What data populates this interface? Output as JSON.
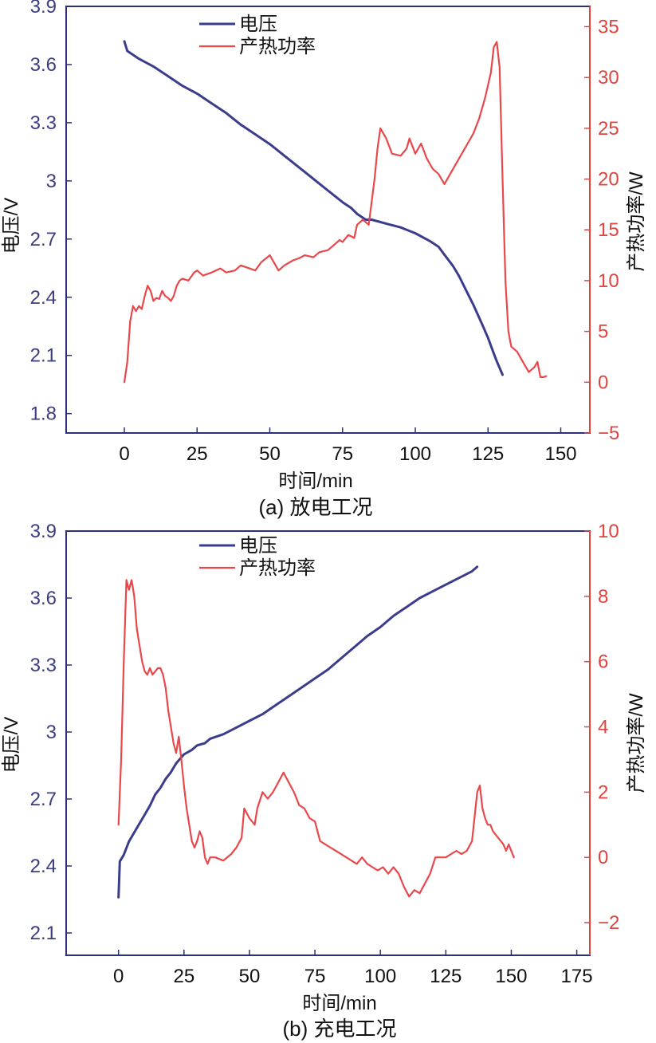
{
  "chart_data": [
    {
      "type": "line",
      "caption": "(a) 放电工况",
      "xlabel": "时间/min",
      "ylabel_left": "电压/V",
      "ylabel_right": "产热功率/W",
      "xlim": [
        -20,
        160
      ],
      "xticks": [
        0,
        25,
        50,
        75,
        100,
        125,
        150
      ],
      "ylim_left": [
        1.7,
        3.9
      ],
      "yticks_left": [
        1.8,
        2.1,
        2.4,
        2.7,
        3.0,
        3.3,
        3.6,
        3.9
      ],
      "ylim_right": [
        -5,
        37
      ],
      "yticks_right": [
        -5,
        0,
        5,
        10,
        15,
        20,
        25,
        30,
        35
      ],
      "legend_position": "top-center",
      "series": [
        {
          "name": "电压",
          "axis": "left",
          "color": "#3b3d8c",
          "x": [
            0,
            1,
            5,
            10,
            15,
            20,
            25,
            30,
            35,
            40,
            45,
            50,
            55,
            60,
            65,
            70,
            75,
            78,
            80,
            83,
            85,
            90,
            95,
            100,
            105,
            108,
            110,
            113,
            115,
            118,
            120,
            123,
            125,
            127,
            128,
            130
          ],
          "y": [
            3.72,
            3.67,
            3.63,
            3.59,
            3.54,
            3.49,
            3.45,
            3.4,
            3.35,
            3.29,
            3.24,
            3.19,
            3.13,
            3.07,
            3.01,
            2.95,
            2.89,
            2.86,
            2.83,
            2.8,
            2.8,
            2.78,
            2.76,
            2.73,
            2.69,
            2.66,
            2.62,
            2.56,
            2.51,
            2.42,
            2.36,
            2.26,
            2.19,
            2.11,
            2.07,
            2.0
          ]
        },
        {
          "name": "产热功率",
          "axis": "right",
          "color": "#e8484b",
          "x": [
            0,
            1,
            2,
            3,
            4,
            5,
            6,
            7,
            8,
            9,
            10,
            11,
            12,
            13,
            14,
            15,
            16,
            17,
            18,
            19,
            20,
            22,
            24,
            25,
            27,
            30,
            33,
            35,
            38,
            40,
            43,
            45,
            47,
            50,
            53,
            55,
            58,
            60,
            62,
            65,
            67,
            70,
            72,
            74,
            75,
            77,
            79,
            80,
            82,
            84,
            86,
            87,
            88,
            90,
            92,
            95,
            97,
            98,
            100,
            102,
            104,
            106,
            108,
            110,
            112,
            114,
            116,
            118,
            120,
            122,
            124,
            126,
            127,
            128,
            129,
            130,
            131,
            132,
            133,
            135,
            137,
            139,
            141,
            142,
            143,
            144,
            145
          ],
          "y": [
            0,
            2,
            6,
            7.5,
            7,
            7.5,
            7.2,
            8.5,
            9.5,
            9,
            8,
            8.3,
            8.2,
            9,
            8.5,
            8.3,
            8,
            8.5,
            9.5,
            10,
            10.2,
            10,
            10.8,
            11,
            10.5,
            10.8,
            11.2,
            10.8,
            11,
            11.5,
            11.2,
            11,
            11.8,
            12.5,
            11,
            11.5,
            12,
            12.2,
            12.5,
            12.3,
            12.8,
            13,
            13.5,
            14,
            13.8,
            14.5,
            14.2,
            15.5,
            16,
            15.5,
            20,
            23,
            25,
            24,
            22.5,
            22.3,
            23,
            24,
            22.5,
            23.5,
            22,
            21,
            20.5,
            19.5,
            20.5,
            21.5,
            22.5,
            23.5,
            24.5,
            26,
            28,
            30.5,
            33,
            33.5,
            31,
            20,
            10,
            5,
            3.5,
            3,
            2,
            1,
            1.5,
            2,
            0.5,
            0.5,
            0.6
          ]
        }
      ]
    },
    {
      "type": "line",
      "caption": "(b) 充电工况",
      "xlabel": "时间/min",
      "ylabel_left": "电压/V",
      "ylabel_right": "产热功率/W",
      "xlim": [
        -20,
        180
      ],
      "xticks": [
        0,
        25,
        50,
        75,
        100,
        125,
        150,
        175
      ],
      "ylim_left": [
        2.0,
        3.9
      ],
      "yticks_left": [
        2.1,
        2.4,
        2.7,
        3.0,
        3.3,
        3.6,
        3.9
      ],
      "ylim_right": [
        -3,
        10
      ],
      "yticks_right": [
        -2,
        0,
        2,
        4,
        6,
        8,
        10
      ],
      "legend_position": "top-center",
      "series": [
        {
          "name": "电压",
          "axis": "left",
          "color": "#3b3d8c",
          "x": [
            0,
            0.5,
            2,
            4,
            6,
            8,
            10,
            12,
            14,
            16,
            18,
            20,
            22,
            25,
            28,
            30,
            33,
            35,
            40,
            45,
            50,
            55,
            60,
            65,
            70,
            75,
            80,
            85,
            90,
            95,
            100,
            105,
            110,
            115,
            120,
            125,
            130,
            135,
            137
          ],
          "y": [
            2.26,
            2.42,
            2.45,
            2.51,
            2.55,
            2.59,
            2.63,
            2.67,
            2.72,
            2.75,
            2.79,
            2.82,
            2.86,
            2.9,
            2.92,
            2.94,
            2.95,
            2.97,
            2.99,
            3.02,
            3.05,
            3.08,
            3.12,
            3.16,
            3.2,
            3.24,
            3.28,
            3.33,
            3.38,
            3.43,
            3.47,
            3.52,
            3.56,
            3.6,
            3.63,
            3.66,
            3.69,
            3.72,
            3.74
          ]
        },
        {
          "name": "产热功率",
          "axis": "right",
          "color": "#e8484b",
          "x": [
            0,
            1,
            2,
            3,
            4,
            5,
            6,
            7,
            8,
            9,
            10,
            11,
            12,
            13,
            14,
            15,
            16,
            17,
            18,
            19,
            20,
            21,
            22,
            23,
            24,
            25,
            26,
            27,
            28,
            29,
            30,
            31,
            32,
            33,
            34,
            35,
            37,
            40,
            43,
            45,
            47,
            48,
            50,
            52,
            53,
            55,
            57,
            59,
            61,
            63,
            65,
            67,
            69,
            71,
            73,
            75,
            77,
            79,
            81,
            83,
            85,
            87,
            89,
            91,
            93,
            95,
            97,
            99,
            101,
            103,
            105,
            107,
            109,
            111,
            113,
            115,
            117,
            119,
            121,
            123,
            125,
            127,
            129,
            131,
            133,
            135,
            137,
            138,
            139,
            140,
            141,
            142,
            143,
            145,
            147,
            148,
            149,
            150,
            151
          ],
          "y": [
            1,
            3,
            6,
            8.5,
            8.2,
            8.5,
            8,
            7,
            6.5,
            6,
            5.7,
            5.6,
            5.8,
            5.6,
            5.7,
            5.8,
            5.8,
            5.6,
            5.2,
            4.5,
            4,
            3.5,
            3.2,
            3.7,
            3,
            2.2,
            1.5,
            1.0,
            0.5,
            0.3,
            0.5,
            0.8,
            0.6,
            0,
            -0.2,
            0,
            0,
            -0.1,
            0.1,
            0.3,
            0.6,
            1.5,
            1.2,
            1.0,
            1.5,
            2.0,
            1.8,
            2.0,
            2.3,
            2.6,
            2.3,
            2.0,
            1.6,
            1.5,
            1.2,
            1.1,
            0.5,
            0.4,
            0.3,
            0.2,
            0.1,
            0.0,
            -0.1,
            -0.2,
            0.0,
            -0.2,
            -0.3,
            -0.4,
            -0.3,
            -0.5,
            -0.3,
            -0.5,
            -0.9,
            -1.2,
            -1.0,
            -1.1,
            -0.8,
            -0.5,
            0,
            0,
            0,
            0.1,
            0.2,
            0.1,
            0.2,
            0.5,
            2.0,
            2.2,
            1.5,
            1.2,
            1.0,
            1.0,
            0.8,
            0.6,
            0.4,
            0.2,
            0.4,
            0.2,
            0
          ]
        }
      ]
    }
  ]
}
